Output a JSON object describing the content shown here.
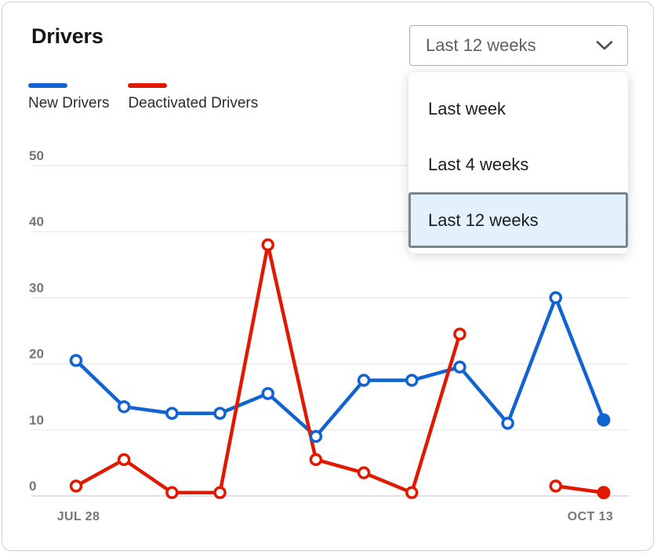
{
  "card": {
    "title": "Drivers"
  },
  "period_select": {
    "value": "Last 12 weeks"
  },
  "dropdown_menu": {
    "options": [
      {
        "label": "Last week",
        "selected": false
      },
      {
        "label": "Last 4 weeks",
        "selected": false
      },
      {
        "label": "Last 12 weeks",
        "selected": true
      }
    ]
  },
  "legend": {
    "items": [
      {
        "label": "New Drivers",
        "color": "#1163d1"
      },
      {
        "label": "Deactivated Drivers",
        "color": "#e11900"
      }
    ]
  },
  "colors": {
    "new_drivers_blue": "#1163d1",
    "deactivated_red": "#e11900",
    "selected_option_bg": "#e3f1fc",
    "selected_option_border": "#78868f",
    "gridline": "#ececec",
    "axis_text": "#767676"
  },
  "chart_data": {
    "type": "line",
    "title": "Drivers",
    "x_tick_labels": [
      "JUL 28",
      "OCT 13"
    ],
    "y_ticks": [
      0,
      10,
      20,
      30,
      40,
      50
    ],
    "ylim": [
      0,
      50
    ],
    "grid": true,
    "legend_position": "top-left",
    "num_points": 12,
    "series": [
      {
        "name": "New Drivers",
        "color": "#1163d1",
        "values": [
          20.5,
          13.5,
          12.5,
          12.5,
          15.5,
          9,
          17.5,
          17.5,
          19.5,
          11,
          30,
          11.5
        ]
      },
      {
        "name": "Deactivated Drivers",
        "color": "#e11900",
        "values": [
          1.5,
          5.5,
          0.5,
          0.5,
          38,
          5.5,
          3.5,
          0.5,
          24.5,
          null,
          1.5,
          0.5
        ]
      }
    ]
  }
}
